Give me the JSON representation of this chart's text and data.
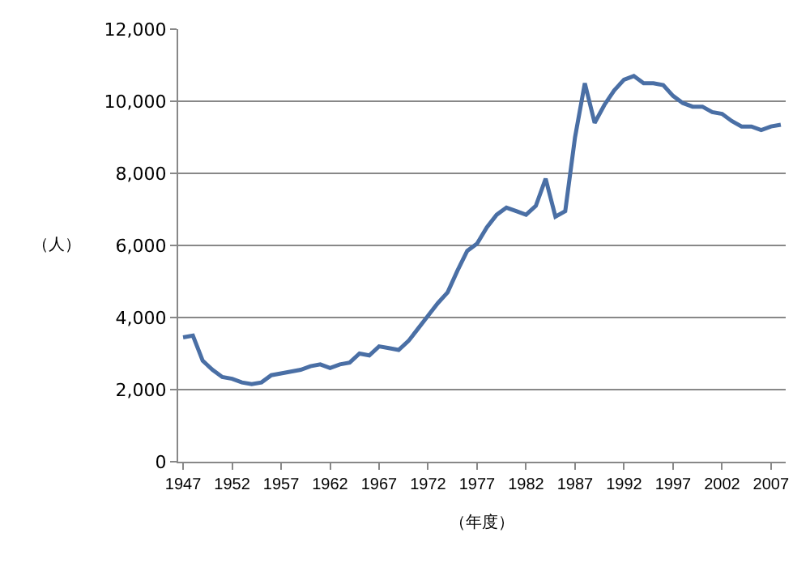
{
  "chart_data": {
    "type": "line",
    "xlabel": "（年度）",
    "ylabel": "（人）",
    "categories": [
      "1947",
      null,
      null,
      null,
      null,
      "1952",
      null,
      null,
      null,
      null,
      "1957",
      null,
      null,
      null,
      null,
      "1962",
      null,
      null,
      null,
      null,
      "1967",
      null,
      null,
      null,
      null,
      "1972",
      null,
      null,
      null,
      null,
      "1977",
      null,
      null,
      null,
      null,
      "1982",
      null,
      null,
      null,
      null,
      "1987",
      null,
      null,
      null,
      null,
      "1992",
      null,
      null,
      null,
      null,
      "1997",
      null,
      null,
      null,
      null,
      "2002",
      null,
      null,
      null,
      null,
      "2007",
      null
    ],
    "series": [
      {
        "color": "#4a6fa5",
        "values": [
          3450,
          3500,
          2800,
          2550,
          2350,
          2300,
          2200,
          2150,
          2200,
          2400,
          2450,
          2500,
          2550,
          2650,
          2700,
          2600,
          2700,
          2750,
          3000,
          2950,
          3200,
          3150,
          3100,
          3350,
          3700,
          4050,
          4400,
          4700,
          5300,
          5850,
          6050,
          6500,
          6850,
          7050,
          6950,
          6850,
          7100,
          7850,
          6800,
          6950,
          9000,
          10500,
          9400,
          9900,
          10300,
          10600,
          10700,
          10500,
          10500,
          10450,
          10150,
          9950,
          9850,
          9850,
          9700,
          9650,
          9450,
          9300,
          9300,
          9200,
          9300,
          9350
        ]
      }
    ],
    "ylim": [
      0,
      12000
    ],
    "yticks": [
      {
        "value": 0,
        "label": "0"
      },
      {
        "value": 2000,
        "label": "2,000"
      },
      {
        "value": 4000,
        "label": "4,000"
      },
      {
        "value": 6000,
        "label": "6,000"
      },
      {
        "value": 8000,
        "label": "8,000"
      },
      {
        "value": 10000,
        "label": "10,000"
      },
      {
        "value": 12000,
        "label": "12,000"
      }
    ],
    "grid": "y",
    "legend": false,
    "marker": "none",
    "line_style": "solid"
  }
}
